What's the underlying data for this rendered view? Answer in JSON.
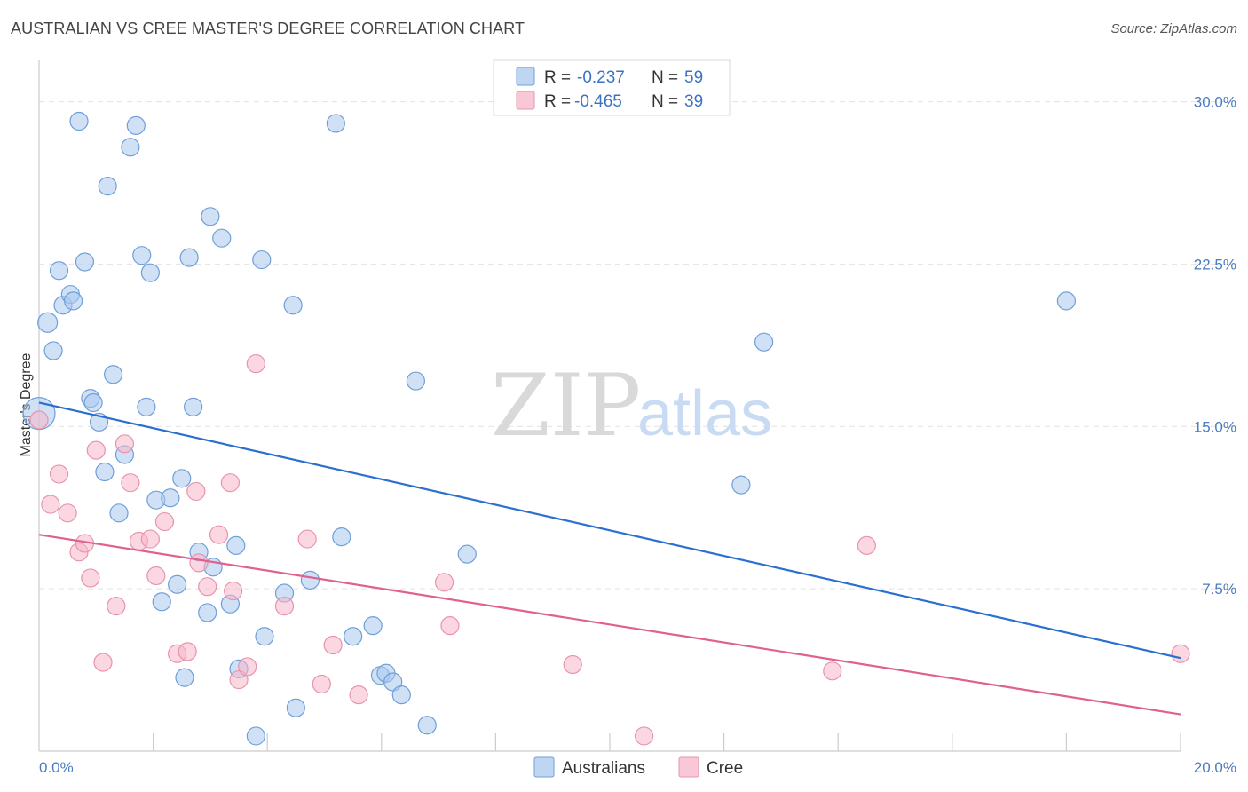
{
  "title": "AUSTRALIAN VS CREE MASTER'S DEGREE CORRELATION CHART",
  "source": "Source: ZipAtlas.com",
  "watermark": {
    "zip": "ZIP",
    "atlas": "atlas"
  },
  "legend_box": {
    "rows": [
      {
        "r_label": "R = ",
        "r_value": "-0.237",
        "n_label": "N = ",
        "n_value": "59",
        "color": "#a9c8ef"
      },
      {
        "r_label": "R = ",
        "r_value": "-0.465",
        "n_label": "N = ",
        "n_value": "39",
        "color": "#f7b6c8"
      }
    ]
  },
  "colors": {
    "australians_fill": "#a9c8ef",
    "australians_stroke": "#6f9fd8",
    "australians_line": "#2b6fd0",
    "cree_fill": "#f7b6c8",
    "cree_stroke": "#e893ad",
    "cree_line": "#e0608e"
  },
  "chart_data": {
    "type": "scatter",
    "title": "AUSTRALIAN VS CREE MASTER'S DEGREE CORRELATION CHART",
    "xlabel": "",
    "ylabel": "Master's Degree",
    "xlim": [
      0,
      20
    ],
    "ylim": [
      0,
      31.5
    ],
    "x_ticks": [
      0,
      20
    ],
    "x_tick_labels": [
      "0.0%",
      "20.0%"
    ],
    "y_ticks": [
      7.5,
      15,
      22.5,
      30
    ],
    "y_tick_labels": [
      "7.5%",
      "15.0%",
      "22.5%",
      "30.0%"
    ],
    "grid": "horizontal-dashed",
    "legend_position": "bottom-center",
    "series": [
      {
        "name": "Australians",
        "trend": {
          "x": [
            0,
            20
          ],
          "y": [
            16.1,
            4.3
          ]
        },
        "points": [
          [
            0.0,
            15.6,
            18
          ],
          [
            0.15,
            19.8,
            11
          ],
          [
            0.25,
            18.5,
            10
          ],
          [
            0.35,
            22.2,
            10
          ],
          [
            0.42,
            20.6,
            10
          ],
          [
            0.55,
            21.1,
            10
          ],
          [
            0.6,
            20.8,
            10
          ],
          [
            0.7,
            29.1,
            10
          ],
          [
            0.8,
            22.6,
            10
          ],
          [
            0.9,
            16.3,
            10
          ],
          [
            0.95,
            16.1,
            10
          ],
          [
            1.05,
            15.2,
            10
          ],
          [
            1.15,
            12.9,
            10
          ],
          [
            1.2,
            26.1,
            10
          ],
          [
            1.3,
            17.4,
            10
          ],
          [
            1.4,
            11.0,
            10
          ],
          [
            1.5,
            13.7,
            10
          ],
          [
            1.6,
            27.9,
            10
          ],
          [
            1.7,
            28.9,
            10
          ],
          [
            1.8,
            22.9,
            10
          ],
          [
            1.88,
            15.9,
            10
          ],
          [
            1.95,
            22.1,
            10
          ],
          [
            2.05,
            11.6,
            10
          ],
          [
            2.15,
            6.9,
            10
          ],
          [
            2.3,
            11.7,
            10
          ],
          [
            2.42,
            7.7,
            10
          ],
          [
            2.5,
            12.6,
            10
          ],
          [
            2.55,
            3.4,
            10
          ],
          [
            2.63,
            22.8,
            10
          ],
          [
            2.7,
            15.9,
            10
          ],
          [
            2.8,
            9.2,
            10
          ],
          [
            2.95,
            6.4,
            10
          ],
          [
            3.0,
            24.7,
            10
          ],
          [
            3.05,
            8.5,
            10
          ],
          [
            3.2,
            23.7,
            10
          ],
          [
            3.35,
            6.8,
            10
          ],
          [
            3.45,
            9.5,
            10
          ],
          [
            3.5,
            3.8,
            10
          ],
          [
            3.8,
            0.7,
            10
          ],
          [
            3.9,
            22.7,
            10
          ],
          [
            3.95,
            5.3,
            10
          ],
          [
            4.3,
            7.3,
            10
          ],
          [
            4.45,
            20.6,
            10
          ],
          [
            4.5,
            2.0,
            10
          ],
          [
            4.75,
            7.9,
            10
          ],
          [
            5.2,
            29.0,
            10
          ],
          [
            5.3,
            9.9,
            10
          ],
          [
            5.5,
            5.3,
            10
          ],
          [
            5.85,
            5.8,
            10
          ],
          [
            5.98,
            3.5,
            10
          ],
          [
            6.08,
            3.6,
            10
          ],
          [
            6.2,
            3.2,
            10
          ],
          [
            6.35,
            2.6,
            10
          ],
          [
            6.6,
            17.1,
            10
          ],
          [
            6.8,
            1.2,
            10
          ],
          [
            7.5,
            9.1,
            10
          ],
          [
            12.3,
            12.3,
            10
          ],
          [
            12.7,
            18.9,
            10
          ],
          [
            18.0,
            20.8,
            10
          ]
        ]
      },
      {
        "name": "Cree",
        "trend": {
          "x": [
            0,
            20
          ],
          "y": [
            10.0,
            1.7
          ]
        },
        "points": [
          [
            0.0,
            15.3,
            10
          ],
          [
            0.2,
            11.4,
            10
          ],
          [
            0.35,
            12.8,
            10
          ],
          [
            0.5,
            11.0,
            10
          ],
          [
            0.7,
            9.2,
            10
          ],
          [
            0.8,
            9.6,
            10
          ],
          [
            0.9,
            8.0,
            10
          ],
          [
            1.0,
            13.9,
            10
          ],
          [
            1.12,
            4.1,
            10
          ],
          [
            1.35,
            6.7,
            10
          ],
          [
            1.5,
            14.2,
            10
          ],
          [
            1.6,
            12.4,
            10
          ],
          [
            1.75,
            9.7,
            10
          ],
          [
            1.95,
            9.8,
            10
          ],
          [
            2.05,
            8.1,
            10
          ],
          [
            2.2,
            10.6,
            10
          ],
          [
            2.42,
            4.5,
            10
          ],
          [
            2.6,
            4.6,
            10
          ],
          [
            2.75,
            12.0,
            10
          ],
          [
            2.8,
            8.7,
            10
          ],
          [
            2.95,
            7.6,
            10
          ],
          [
            3.15,
            10.0,
            10
          ],
          [
            3.35,
            12.4,
            10
          ],
          [
            3.4,
            7.4,
            10
          ],
          [
            3.5,
            3.3,
            10
          ],
          [
            3.65,
            3.9,
            10
          ],
          [
            3.8,
            17.9,
            10
          ],
          [
            4.3,
            6.7,
            10
          ],
          [
            4.7,
            9.8,
            10
          ],
          [
            4.95,
            3.1,
            10
          ],
          [
            5.15,
            4.9,
            10
          ],
          [
            5.6,
            2.6,
            10
          ],
          [
            7.1,
            7.8,
            10
          ],
          [
            7.2,
            5.8,
            10
          ],
          [
            9.35,
            4.0,
            10
          ],
          [
            10.6,
            0.7,
            10
          ],
          [
            13.9,
            3.7,
            10
          ],
          [
            14.5,
            9.5,
            10
          ],
          [
            20.0,
            4.5,
            10
          ]
        ]
      }
    ]
  }
}
